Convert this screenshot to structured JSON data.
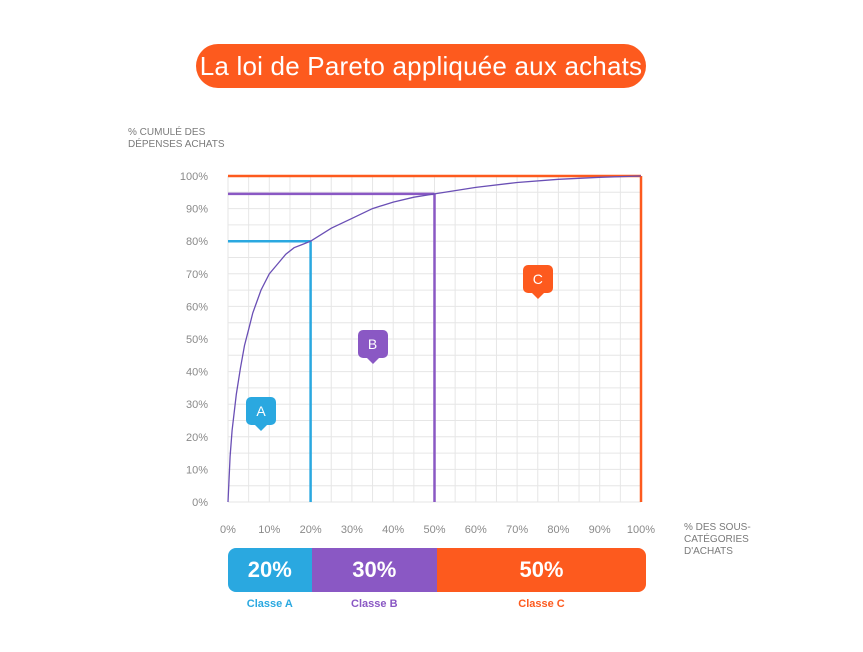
{
  "title": "La loi de Pareto appliquée aux achats",
  "colors": {
    "title_bg": "#fd5a1e",
    "class_a": "#2aa8e0",
    "class_b": "#8a58c4",
    "class_c": "#fd5a1e",
    "curve": "#6a4fb5",
    "grid": "#e6e6e6"
  },
  "axes": {
    "y_title_line1": "% CUMULÉ DES",
    "y_title_line2": "DÉPENSES ACHATS",
    "x_title_line1": "% DES SOUS-CATÉGORIES",
    "x_title_line2": "D'ACHATS"
  },
  "chart_data": {
    "type": "line",
    "title": "La loi de Pareto appliquée aux achats",
    "xlabel": "% DES SOUS-CATÉGORIES D'ACHATS",
    "ylabel": "% CUMULÉ DES DÉPENSES ACHATS",
    "xlim": [
      0,
      100
    ],
    "ylim": [
      0,
      100
    ],
    "grid": true,
    "x_ticks": [
      "0%",
      "10%",
      "20%",
      "30%",
      "40%",
      "50%",
      "60%",
      "70%",
      "80%",
      "90%",
      "100%"
    ],
    "y_ticks": [
      "0%",
      "10%",
      "20%",
      "30%",
      "40%",
      "50%",
      "60%",
      "70%",
      "80%",
      "90%",
      "100%"
    ],
    "series": [
      {
        "x": [
          0,
          0.5,
          1,
          2,
          3,
          4,
          5,
          6,
          8,
          10,
          12,
          14,
          16,
          18,
          20,
          25,
          30,
          35,
          40,
          45,
          50,
          60,
          70,
          80,
          90,
          100
        ],
        "y": [
          0,
          14,
          22,
          33,
          41,
          48,
          53,
          58,
          65,
          70,
          73,
          76,
          78,
          79,
          80,
          84,
          87,
          90,
          92,
          93.5,
          94.5,
          96.5,
          98,
          99,
          99.6,
          100
        ],
        "color": "#6a4fb5"
      }
    ],
    "regions": [
      {
        "label": "A",
        "x_end": 20,
        "y_level": 80,
        "color": "#2aa8e0"
      },
      {
        "label": "B",
        "x_end": 50,
        "y_level": 94.5,
        "color": "#8a58c4"
      },
      {
        "label": "C",
        "x_end": 100,
        "y_level": 100,
        "color": "#fd5a1e"
      }
    ]
  },
  "classes": [
    {
      "percent": "20%",
      "label": "Classe A",
      "share": 20,
      "color": "#2aa8e0"
    },
    {
      "percent": "30%",
      "label": "Classe B",
      "share": 30,
      "color": "#8a58c4"
    },
    {
      "percent": "50%",
      "label": "Classe C",
      "share": 50,
      "color": "#fd5a1e"
    }
  ]
}
